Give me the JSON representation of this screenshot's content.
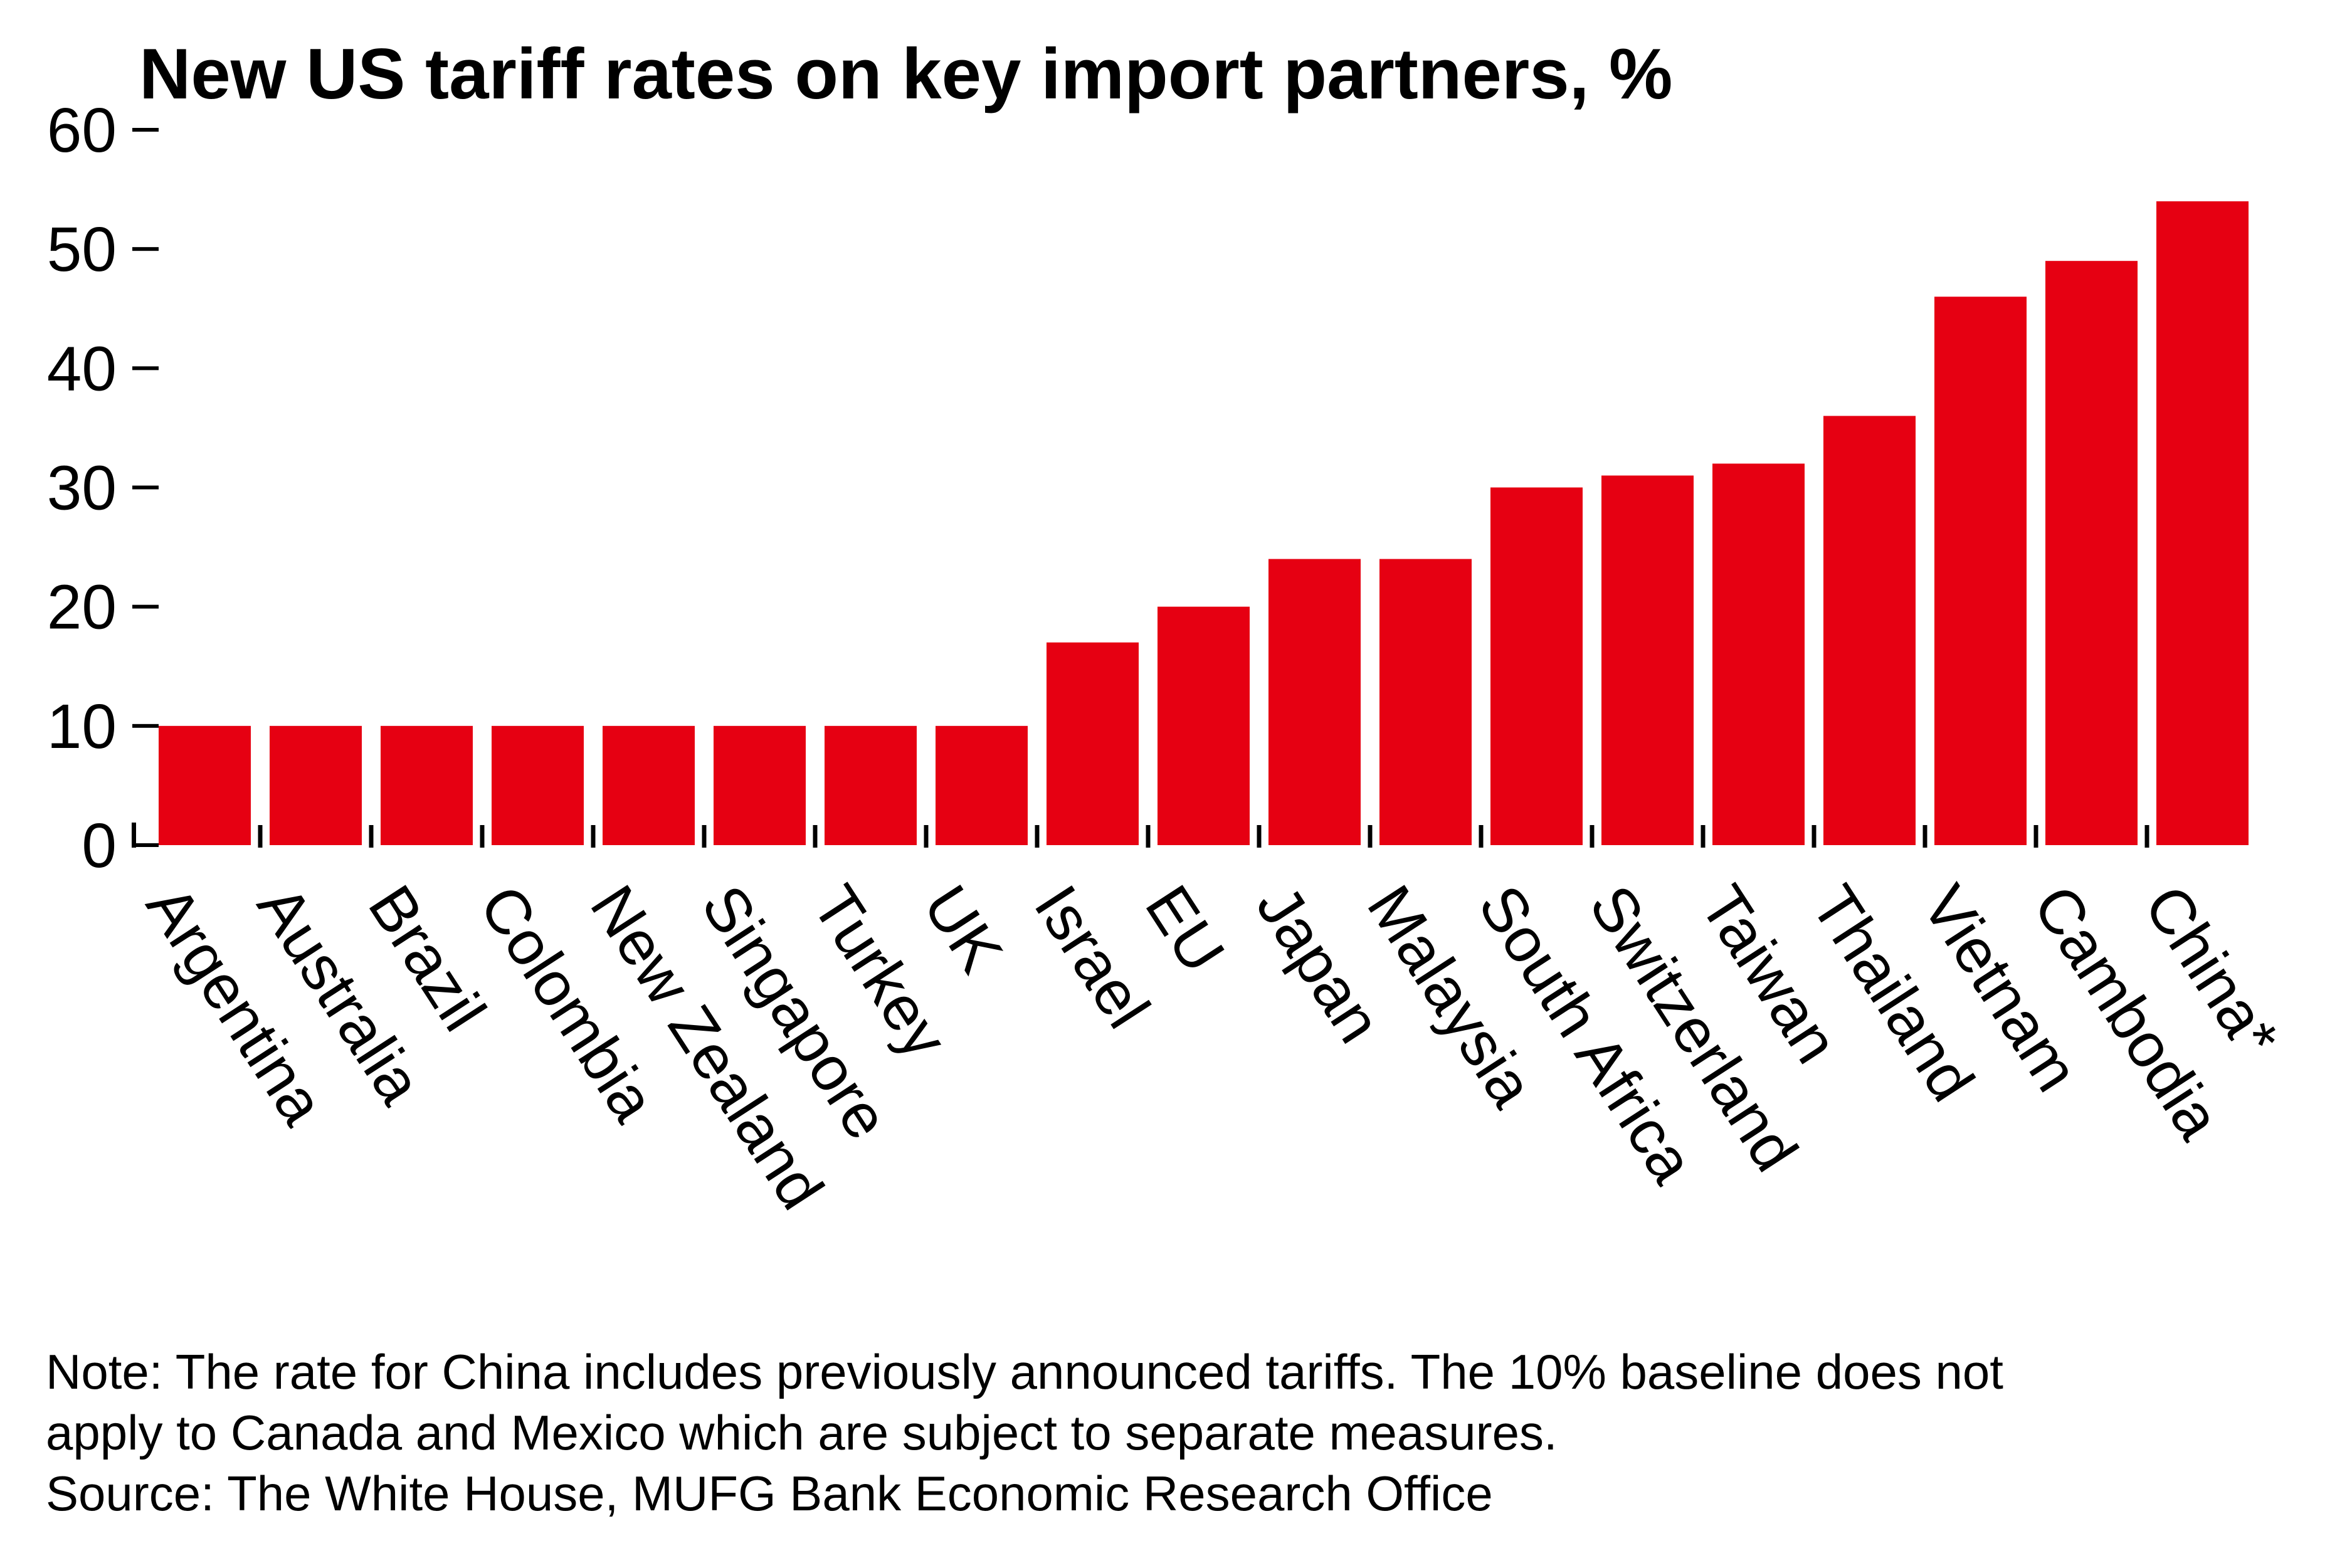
{
  "title": "New US tariff rates on key import partners, %",
  "chart_data": {
    "type": "bar",
    "title": "New US tariff rates on key import partners, %",
    "categories": [
      "Argentina",
      "Australia",
      "Brazil",
      "Colombia",
      "New Zealand",
      "Singapore",
      "Turkey",
      "UK",
      "Israel",
      "EU",
      "Japan",
      "Malaysia",
      "South Africa",
      "Switzerland",
      "Taiwan",
      "Thailand",
      "Vietnam",
      "Cambodia",
      "China*"
    ],
    "values": [
      10,
      10,
      10,
      10,
      10,
      10,
      10,
      10,
      17,
      20,
      24,
      24,
      30,
      31,
      32,
      36,
      46,
      49,
      54
    ],
    "xlabel": "",
    "ylabel": "",
    "ylim": [
      0,
      60
    ],
    "yticks": [
      0,
      10,
      20,
      30,
      40,
      50,
      60
    ],
    "bar_color": "#e60012",
    "axis_color": "#000000",
    "grid": false,
    "legend": null,
    "x_label_rotation_deg": 57
  },
  "note": {
    "line1": "Note: The rate for China includes previously announced tariffs. The 10% baseline does not",
    "line2": "apply to Canada and Mexico which are subject to separate measures.",
    "source": "Source: The White House, MUFG Bank Economic Research Office"
  }
}
